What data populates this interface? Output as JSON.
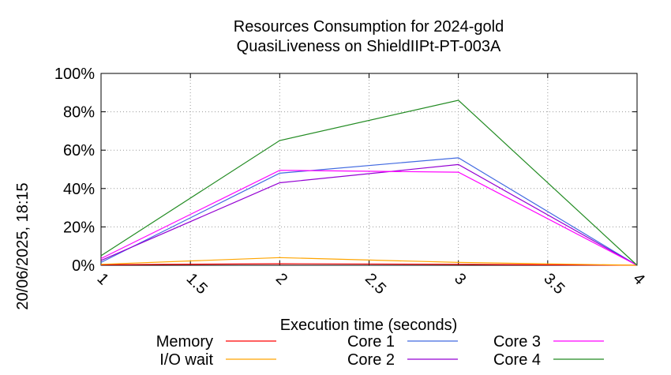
{
  "chart_data": {
    "type": "line",
    "title": [
      "Resources Consumption for 2024-gold",
      "QuasiLiveness on ShieldIIPt-PT-003A"
    ],
    "xlabel": "Execution time (seconds)",
    "ylabel": "",
    "side_label": "20/06/2025, 18:15",
    "xlim": [
      1,
      4
    ],
    "ylim": [
      0,
      100
    ],
    "grid": true,
    "legend_position": "bottom",
    "x_ticks": [
      1,
      1.5,
      2,
      2.5,
      3,
      3.5,
      4
    ],
    "x_tick_labels": [
      "1",
      "1.5",
      "2",
      "2.5",
      "3",
      "3.5",
      "4"
    ],
    "y_ticks": [
      0,
      20,
      40,
      60,
      80,
      100
    ],
    "y_tick_labels": [
      "0%",
      "20%",
      "40%",
      "60%",
      "80%",
      "100%"
    ],
    "series": [
      {
        "name": "Memory",
        "color": "#ff0000",
        "x": [
          1,
          2,
          3,
          4
        ],
        "values": [
          0.3,
          0.8,
          0.5,
          0
        ]
      },
      {
        "name": "I/O wait",
        "color": "#ffa500",
        "x": [
          1,
          2,
          3,
          4
        ],
        "values": [
          0.5,
          4,
          1.5,
          0
        ]
      },
      {
        "name": "Core 1",
        "color": "#4169e1",
        "x": [
          1,
          2,
          3,
          4
        ],
        "values": [
          1.5,
          48,
          56,
          0
        ]
      },
      {
        "name": "Core 2",
        "color": "#9400d3",
        "x": [
          1,
          2,
          3,
          4
        ],
        "values": [
          2.5,
          43,
          52.5,
          0
        ]
      },
      {
        "name": "Core 3",
        "color": "#ff00ff",
        "x": [
          1,
          2,
          3,
          4
        ],
        "values": [
          3.5,
          49.5,
          48.5,
          0
        ]
      },
      {
        "name": "Core 4",
        "color": "#228b22",
        "x": [
          1,
          2,
          3,
          4
        ],
        "values": [
          5,
          65,
          86,
          0
        ]
      }
    ]
  }
}
